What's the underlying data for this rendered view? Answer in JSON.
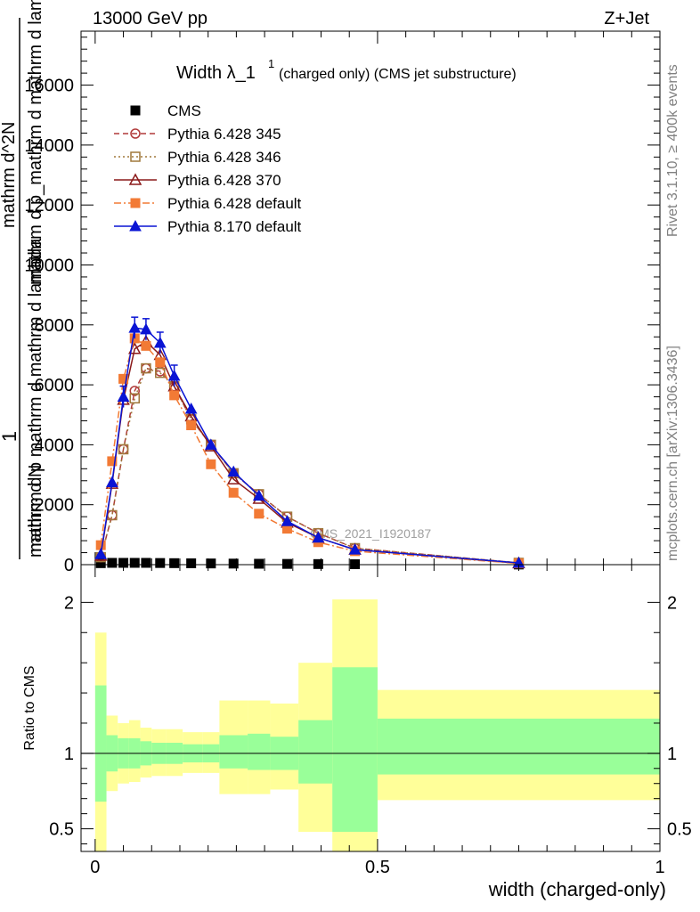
{
  "header": {
    "left": "13000 GeV pp",
    "right": "Z+Jet"
  },
  "side_labels": {
    "rivet": "Rivet 3.1.10, ≥ 400k events",
    "mcplots": "mcplots.cern.ch [arXiv:1306.3436]"
  },
  "watermark": "CMS_2021_I1920187",
  "chart_data": [
    {
      "type": "line",
      "title_main": "Width λ_1",
      "title_sup": "1",
      "title_rest": "(charged only) (CMS jet substructure)",
      "ylabel_num": "1",
      "ylabel_den": "mathrm d N",
      "ylabel_extra1": "mathrm d^2N",
      "ylabel_extra2": "mathrm d p_mathrm d mathrm d lambda",
      "ylabel_extra3": "mathrm d p mathrm d mathrm d lambda",
      "xlim": [
        -0.025,
        1.0
      ],
      "ylim": [
        0,
        17800
      ],
      "yticks": [
        0,
        2000,
        4000,
        6000,
        8000,
        10000,
        12000,
        14000,
        16000
      ],
      "ytick_labels": [
        "0",
        "2000",
        "4000",
        "6000",
        "8000",
        "10000",
        "12000",
        "14000",
        "16000"
      ],
      "legend_position": "top-left",
      "series": [
        {
          "name": "CMS",
          "color": "#000000",
          "marker": "square",
          "line": "none",
          "x": [
            0.01,
            0.03,
            0.05,
            0.07,
            0.09,
            0.115,
            0.14,
            0.17,
            0.205,
            0.245,
            0.29,
            0.34,
            0.395,
            0.46,
            0.75
          ],
          "y": [
            50,
            60,
            60,
            60,
            60,
            55,
            50,
            45,
            40,
            35,
            30,
            25,
            20,
            15,
            5
          ]
        },
        {
          "name": "Pythia 6.428 345",
          "color": "#b03a3a",
          "marker": "open-circle",
          "line": "dashed",
          "x": [
            0.01,
            0.03,
            0.05,
            0.07,
            0.09,
            0.115,
            0.14,
            0.17,
            0.205,
            0.245,
            0.29,
            0.34,
            0.395,
            0.46,
            0.75
          ],
          "y": [
            250,
            1650,
            3850,
            5800,
            6550,
            6450,
            5950,
            4850,
            4000,
            3050,
            2350,
            1600,
            1050,
            550,
            60
          ]
        },
        {
          "name": "Pythia 6.428 346",
          "color": "#a0783c",
          "marker": "open-square",
          "line": "dotted",
          "x": [
            0.01,
            0.03,
            0.05,
            0.07,
            0.09,
            0.115,
            0.14,
            0.17,
            0.205,
            0.245,
            0.29,
            0.34,
            0.395,
            0.46,
            0.75
          ],
          "y": [
            250,
            1650,
            3850,
            5550,
            6550,
            6400,
            5950,
            4850,
            4000,
            3050,
            2350,
            1600,
            1050,
            550,
            60
          ]
        },
        {
          "name": "Pythia 6.428 370",
          "color": "#8b1a1a",
          "marker": "open-triangle",
          "line": "solid",
          "x": [
            0.01,
            0.03,
            0.05,
            0.07,
            0.09,
            0.115,
            0.14,
            0.17,
            0.205,
            0.245,
            0.29,
            0.34,
            0.395,
            0.46,
            0.75
          ],
          "y": [
            300,
            2700,
            5500,
            7200,
            7450,
            7000,
            5950,
            4950,
            3950,
            2850,
            2200,
            1400,
            900,
            500,
            50
          ]
        },
        {
          "name": "Pythia 6.428 default",
          "color": "#f27a35",
          "marker": "filled-square",
          "line": "dashdot",
          "x": [
            0.01,
            0.03,
            0.05,
            0.07,
            0.09,
            0.115,
            0.14,
            0.17,
            0.205,
            0.245,
            0.29,
            0.34,
            0.395,
            0.46,
            0.75
          ],
          "y": [
            650,
            3450,
            6200,
            7550,
            7300,
            6750,
            5650,
            4650,
            3350,
            2400,
            1700,
            1200,
            750,
            450,
            40
          ]
        },
        {
          "name": "Pythia 8.170 default",
          "color": "#0a14d4",
          "marker": "filled-triangle",
          "line": "solid",
          "x": [
            0.01,
            0.03,
            0.05,
            0.07,
            0.09,
            0.115,
            0.14,
            0.17,
            0.205,
            0.245,
            0.29,
            0.34,
            0.395,
            0.46,
            0.75
          ],
          "y": [
            350,
            2750,
            5600,
            7900,
            7850,
            7400,
            6300,
            5200,
            4000,
            3100,
            2300,
            1450,
            900,
            500,
            60
          ]
        }
      ]
    },
    {
      "type": "area",
      "ylabel": "Ratio to CMS",
      "xlabel": "width (charged-only)",
      "xlim": [
        -0.025,
        1.0
      ],
      "ylim": [
        0.35,
        2.25
      ],
      "yticks": [
        0.5,
        1,
        2
      ],
      "ytick_labels": [
        "0.5",
        "1",
        "2"
      ],
      "xticks": [
        0,
        0.5,
        1
      ],
      "xtick_labels": [
        "0",
        "0.5",
        "1"
      ],
      "bins": [
        {
          "x0": 0.0,
          "x1": 0.02,
          "y_lo": 0.35,
          "y_hi": 1.8,
          "g_lo": 0.68,
          "g_hi": 1.45
        },
        {
          "x0": 0.02,
          "x1": 0.04,
          "y_lo": 0.75,
          "y_hi": 1.25,
          "g_lo": 0.88,
          "g_hi": 1.12
        },
        {
          "x0": 0.04,
          "x1": 0.06,
          "y_lo": 0.8,
          "y_hi": 1.2,
          "g_lo": 0.9,
          "g_hi": 1.1
        },
        {
          "x0": 0.06,
          "x1": 0.08,
          "y_lo": 0.81,
          "y_hi": 1.22,
          "g_lo": 0.9,
          "g_hi": 1.1
        },
        {
          "x0": 0.08,
          "x1": 0.1,
          "y_lo": 0.84,
          "y_hi": 1.17,
          "g_lo": 0.92,
          "g_hi": 1.08
        },
        {
          "x0": 0.1,
          "x1": 0.125,
          "y_lo": 0.85,
          "y_hi": 1.16,
          "g_lo": 0.93,
          "g_hi": 1.07
        },
        {
          "x0": 0.125,
          "x1": 0.155,
          "y_lo": 0.85,
          "y_hi": 1.16,
          "g_lo": 0.93,
          "g_hi": 1.07
        },
        {
          "x0": 0.155,
          "x1": 0.19,
          "y_lo": 0.87,
          "y_hi": 1.14,
          "g_lo": 0.94,
          "g_hi": 1.06
        },
        {
          "x0": 0.19,
          "x1": 0.22,
          "y_lo": 0.87,
          "y_hi": 1.14,
          "g_lo": 0.94,
          "g_hi": 1.06
        },
        {
          "x0": 0.22,
          "x1": 0.27,
          "y_lo": 0.73,
          "y_hi": 1.35,
          "g_lo": 0.9,
          "g_hi": 1.12
        },
        {
          "x0": 0.27,
          "x1": 0.31,
          "y_lo": 0.73,
          "y_hi": 1.35,
          "g_lo": 0.89,
          "g_hi": 1.13
        },
        {
          "x0": 0.31,
          "x1": 0.36,
          "y_lo": 0.76,
          "y_hi": 1.33,
          "g_lo": 0.89,
          "g_hi": 1.11
        },
        {
          "x0": 0.36,
          "x1": 0.42,
          "y_lo": 0.48,
          "y_hi": 1.6,
          "g_lo": 0.8,
          "g_hi": 1.22
        },
        {
          "x0": 0.42,
          "x1": 0.5,
          "y_lo": 0.33,
          "y_hi": 2.02,
          "g_lo": 0.48,
          "g_hi": 1.57
        },
        {
          "x0": 0.5,
          "x1": 1.0,
          "y_lo": 0.69,
          "y_hi": 1.42,
          "g_lo": 0.86,
          "g_hi": 1.23
        }
      ],
      "band_colors": {
        "outer": "#ffff99",
        "inner": "#99ff99"
      }
    }
  ]
}
